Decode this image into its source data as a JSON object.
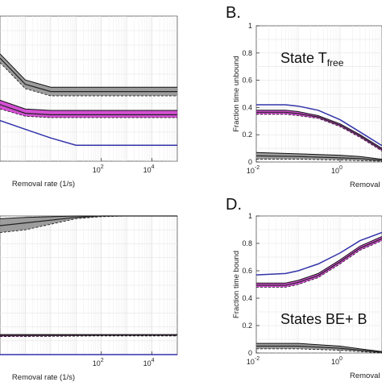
{
  "chart_data": [
    {
      "id": "A",
      "type": "line",
      "panel_label": "",
      "xlabel": "Removal rate (1/s)",
      "ylabel": "",
      "xscale": "log",
      "xlim": [
        0.01,
        100000
      ],
      "ylim": [
        0,
        1
      ],
      "xticks": [
        {
          "value": 100,
          "label": "10",
          "exp": "2"
        },
        {
          "value": 10000,
          "label": "10",
          "exp": "4"
        }
      ],
      "yticks": [],
      "grid": true,
      "annotation": "",
      "series": [
        {
          "name": "",
          "color": "#8c8c8c",
          "band": true,
          "x": [
            0.01,
            0.1,
            1,
            10,
            100,
            1000,
            100000
          ],
          "upper": [
            0.74,
            0.56,
            0.51,
            0.51,
            0.51,
            0.51,
            0.51
          ],
          "lower": [
            0.68,
            0.5,
            0.45,
            0.45,
            0.45,
            0.45,
            0.45
          ],
          "y": [
            0.71,
            0.53,
            0.48,
            0.48,
            0.48,
            0.48,
            0.48
          ]
        },
        {
          "name": "",
          "color": "#cc33cc",
          "band": true,
          "x": [
            0.01,
            0.1,
            1,
            10,
            100,
            1000,
            100000
          ],
          "upper": [
            0.42,
            0.36,
            0.35,
            0.35,
            0.35,
            0.35,
            0.35
          ],
          "lower": [
            0.36,
            0.31,
            0.3,
            0.3,
            0.3,
            0.3,
            0.3
          ],
          "y": [
            0.39,
            0.33,
            0.32,
            0.32,
            0.32,
            0.32,
            0.32
          ]
        },
        {
          "name": "",
          "color": "#3333aa",
          "band": false,
          "x": [
            0.01,
            0.1,
            1,
            10,
            100,
            1000,
            100000
          ],
          "y": [
            0.28,
            0.22,
            0.16,
            0.11,
            0.11,
            0.11,
            0.11
          ]
        }
      ]
    },
    {
      "id": "B",
      "type": "line",
      "panel_label": "B.",
      "xlabel": "Removal",
      "ylabel": "Fraction time unbound",
      "xscale": "log",
      "xlim": [
        0.01,
        10
      ],
      "ylim": [
        0,
        1
      ],
      "xticks": [
        {
          "value": 0.01,
          "label": "10",
          "exp": "-2"
        },
        {
          "value": 1,
          "label": "10",
          "exp": "0"
        }
      ],
      "yticks": [
        0,
        0.2,
        0.4,
        0.6,
        0.8,
        1
      ],
      "grid": true,
      "annotation": "State T",
      "annotation_sub": "free",
      "series": [
        {
          "name": "",
          "color": "#3333aa",
          "band": false,
          "x": [
            0.01,
            0.05,
            0.1,
            0.3,
            1,
            3,
            10
          ],
          "y": [
            0.42,
            0.42,
            0.41,
            0.38,
            0.31,
            0.22,
            0.12
          ]
        },
        {
          "name": "",
          "color": "#cc33cc",
          "band": true,
          "x": [
            0.01,
            0.05,
            0.1,
            0.3,
            1,
            3,
            10
          ],
          "upper": [
            0.38,
            0.38,
            0.37,
            0.34,
            0.28,
            0.2,
            0.1
          ],
          "lower": [
            0.35,
            0.35,
            0.34,
            0.32,
            0.26,
            0.18,
            0.08
          ],
          "y": [
            0.365,
            0.365,
            0.355,
            0.33,
            0.27,
            0.19,
            0.09
          ]
        },
        {
          "name": "",
          "color": "#8c8c8c",
          "band": true,
          "x": [
            0.01,
            0.1,
            1,
            3,
            10
          ],
          "upper": [
            0.07,
            0.06,
            0.05,
            0.04,
            0.02
          ],
          "lower": [
            0.02,
            0.02,
            0.015,
            0.01,
            0.005
          ],
          "y": [
            0.045,
            0.04,
            0.03,
            0.025,
            0.012
          ]
        }
      ]
    },
    {
      "id": "C",
      "type": "line",
      "panel_label": "",
      "xlabel": "Removal rate (1/s)",
      "ylabel": "",
      "xscale": "log",
      "xlim": [
        0.01,
        100000
      ],
      "ylim": [
        0,
        1
      ],
      "xticks": [
        {
          "value": 100,
          "label": "10",
          "exp": "2"
        },
        {
          "value": 10000,
          "label": "10",
          "exp": "4"
        }
      ],
      "yticks": [],
      "grid": true,
      "annotation": "",
      "series": [
        {
          "name": "",
          "color": "#8c8c8c",
          "band": true,
          "x": [
            0.01,
            0.1,
            1,
            10,
            100,
            1000,
            100000
          ],
          "upper": [
            0.98,
            0.99,
            0.995,
            1.0,
            1.0,
            1.0,
            1.0
          ],
          "lower": [
            0.88,
            0.9,
            0.94,
            0.98,
            0.995,
            1.0,
            1.0
          ],
          "y": [
            0.93,
            0.95,
            0.97,
            0.99,
            1.0,
            1.0,
            1.0
          ]
        },
        {
          "name": "",
          "color": "#cc33cc",
          "band": true,
          "x": [
            0.01,
            1,
            100,
            100000
          ],
          "upper": [
            0.145,
            0.145,
            0.145,
            0.145
          ],
          "lower": [
            0.13,
            0.132,
            0.135,
            0.135
          ],
          "y": [
            0.138,
            0.139,
            0.14,
            0.14
          ]
        },
        {
          "name": "",
          "color": "#3333aa",
          "band": false,
          "x": [
            0.01,
            100000
          ],
          "y": [
            0.0,
            0.0
          ]
        }
      ]
    },
    {
      "id": "D",
      "type": "line",
      "panel_label": "D.",
      "xlabel": "Removal",
      "ylabel": "Fraction time bound",
      "xscale": "log",
      "xlim": [
        0.01,
        10
      ],
      "ylim": [
        0,
        1
      ],
      "xticks": [
        {
          "value": 0.01,
          "label": "10",
          "exp": "-2"
        },
        {
          "value": 1,
          "label": "10",
          "exp": "0"
        }
      ],
      "yticks": [
        0,
        0.2,
        0.4,
        0.6,
        0.8,
        1
      ],
      "grid": true,
      "annotation": "States BE+ B",
      "annotation_sub": "",
      "series": [
        {
          "name": "",
          "color": "#3333aa",
          "band": false,
          "x": [
            0.01,
            0.05,
            0.1,
            0.3,
            1,
            3,
            10
          ],
          "y": [
            0.57,
            0.58,
            0.6,
            0.65,
            0.73,
            0.82,
            0.88
          ]
        },
        {
          "name": "",
          "color": "#cc33cc",
          "band": true,
          "x": [
            0.01,
            0.05,
            0.1,
            0.3,
            1,
            3,
            10
          ],
          "upper": [
            0.51,
            0.51,
            0.53,
            0.58,
            0.68,
            0.78,
            0.85
          ],
          "lower": [
            0.48,
            0.48,
            0.5,
            0.55,
            0.65,
            0.75,
            0.82
          ],
          "y": [
            0.495,
            0.495,
            0.515,
            0.565,
            0.665,
            0.765,
            0.835
          ]
        },
        {
          "name": "",
          "color": "#8c8c8c",
          "band": true,
          "x": [
            0.01,
            0.1,
            1,
            3,
            10
          ],
          "upper": [
            0.07,
            0.07,
            0.05,
            0.03,
            0.01
          ],
          "lower": [
            0.03,
            0.03,
            0.02,
            0.01,
            0.0
          ],
          "y": [
            0.05,
            0.05,
            0.035,
            0.02,
            0.005
          ]
        }
      ]
    }
  ]
}
